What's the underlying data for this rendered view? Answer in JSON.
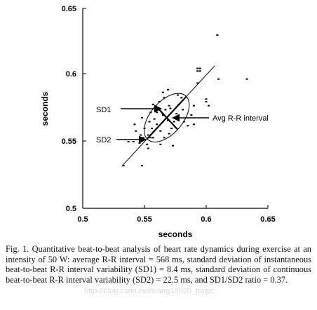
{
  "chart_data": {
    "type": "scatter",
    "title": "",
    "xlabel": "seconds",
    "ylabel": "seconds",
    "xlim": [
      0.5,
      0.65
    ],
    "ylim": [
      0.5,
      0.65
    ],
    "xticks": [
      "0.5",
      "0.55",
      "0.6",
      "0.65"
    ],
    "yticks": [
      "0.5",
      "0.55",
      "0.6",
      "0.65"
    ],
    "points": [
      [
        0.533,
        0.532
      ],
      [
        0.548,
        0.532
      ],
      [
        0.537,
        0.55
      ],
      [
        0.541,
        0.55
      ],
      [
        0.546,
        0.549
      ],
      [
        0.543,
        0.558
      ],
      [
        0.549,
        0.553
      ],
      [
        0.552,
        0.548
      ],
      [
        0.553,
        0.545
      ],
      [
        0.555,
        0.553
      ],
      [
        0.556,
        0.56
      ],
      [
        0.55,
        0.56
      ],
      [
        0.548,
        0.568
      ],
      [
        0.554,
        0.565
      ],
      [
        0.558,
        0.567
      ],
      [
        0.56,
        0.563
      ],
      [
        0.557,
        0.553
      ],
      [
        0.563,
        0.558
      ],
      [
        0.566,
        0.553
      ],
      [
        0.563,
        0.548
      ],
      [
        0.57,
        0.556
      ],
      [
        0.572,
        0.56
      ],
      [
        0.574,
        0.565
      ],
      [
        0.569,
        0.566
      ],
      [
        0.565,
        0.57
      ],
      [
        0.56,
        0.572
      ],
      [
        0.555,
        0.572
      ],
      [
        0.557,
        0.578
      ],
      [
        0.562,
        0.58
      ],
      [
        0.566,
        0.583
      ],
      [
        0.569,
        0.589
      ],
      [
        0.565,
        0.587
      ],
      [
        0.571,
        0.575
      ],
      [
        0.576,
        0.571
      ],
      [
        0.578,
        0.578
      ],
      [
        0.58,
        0.583
      ],
      [
        0.577,
        0.585
      ],
      [
        0.581,
        0.574
      ],
      [
        0.573,
        0.547
      ],
      [
        0.585,
        0.562
      ],
      [
        0.582,
        0.565
      ],
      [
        0.59,
        0.563
      ],
      [
        0.588,
        0.57
      ],
      [
        0.59,
        0.577
      ],
      [
        0.602,
        0.577
      ],
      [
        0.6,
        0.58
      ],
      [
        0.6,
        0.582
      ],
      [
        0.593,
        0.594
      ],
      [
        0.593,
        0.603
      ],
      [
        0.595,
        0.603
      ],
      [
        0.593,
        0.605
      ],
      [
        0.595,
        0.605
      ],
      [
        0.61,
        0.597
      ],
      [
        0.633,
        0.597
      ],
      [
        0.609,
        0.63
      ],
      [
        0.553,
        0.555
      ],
      [
        0.547,
        0.555
      ],
      [
        0.542,
        0.563
      ],
      [
        0.567,
        0.574
      ],
      [
        0.57,
        0.577
      ]
    ],
    "identity_line": [
      [
        0.532,
        0.532
      ],
      [
        0.607,
        0.607
      ]
    ],
    "ellipse": {
      "center": [
        0.568,
        0.568
      ],
      "sd1": 0.0084,
      "sd2": 0.0225,
      "angle_deg": 45
    },
    "annotations": {
      "sd1_label": "SD1",
      "sd2_label": "SD2",
      "avg_label": "Avg R-R interval",
      "avg_value": 0.568
    }
  },
  "caption": {
    "fig_label": "Fig. 1.",
    "text": "Quantitative beat-to-beat analysis of heart rate dynamics during exercise at an intensity of 50 W: average R-R interval = 568 ms, standard deviation of instantaneous beat-to-beat R-R interval variability (SD1) = 8.4 ms, standard deviation of continuous beat-to-beat R-R interval variability (SD2) = 22.5 ms, and SD1/SD2 ratio = 0.37."
  },
  "watermark": "http://blog.csdn.net/wang19920_baipc"
}
